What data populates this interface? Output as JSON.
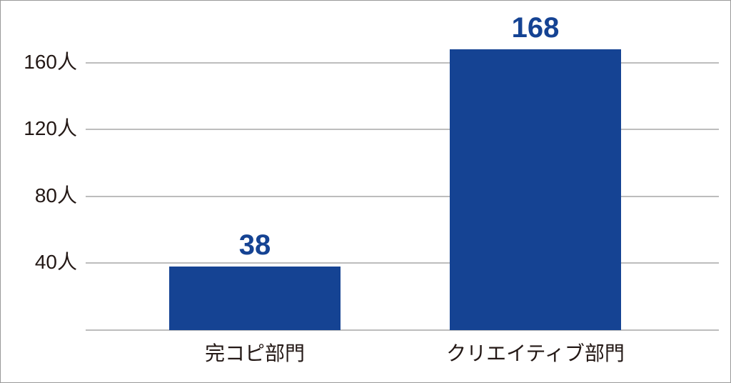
{
  "chart_data": {
    "type": "bar",
    "title": "",
    "xlabel": "",
    "ylabel": "",
    "categories": [
      "完コピ部門",
      "クリエイティブ部門"
    ],
    "values": [
      38,
      168
    ],
    "data_labels": [
      "38",
      "168"
    ],
    "y_ticks": [
      "40人",
      "80人",
      "120人",
      "160人"
    ],
    "y_tick_values": [
      40,
      80,
      120,
      160
    ],
    "ylim": [
      0,
      180
    ],
    "grid": true,
    "legend": null,
    "bar_color": "#154393",
    "label_color": "#154393"
  }
}
